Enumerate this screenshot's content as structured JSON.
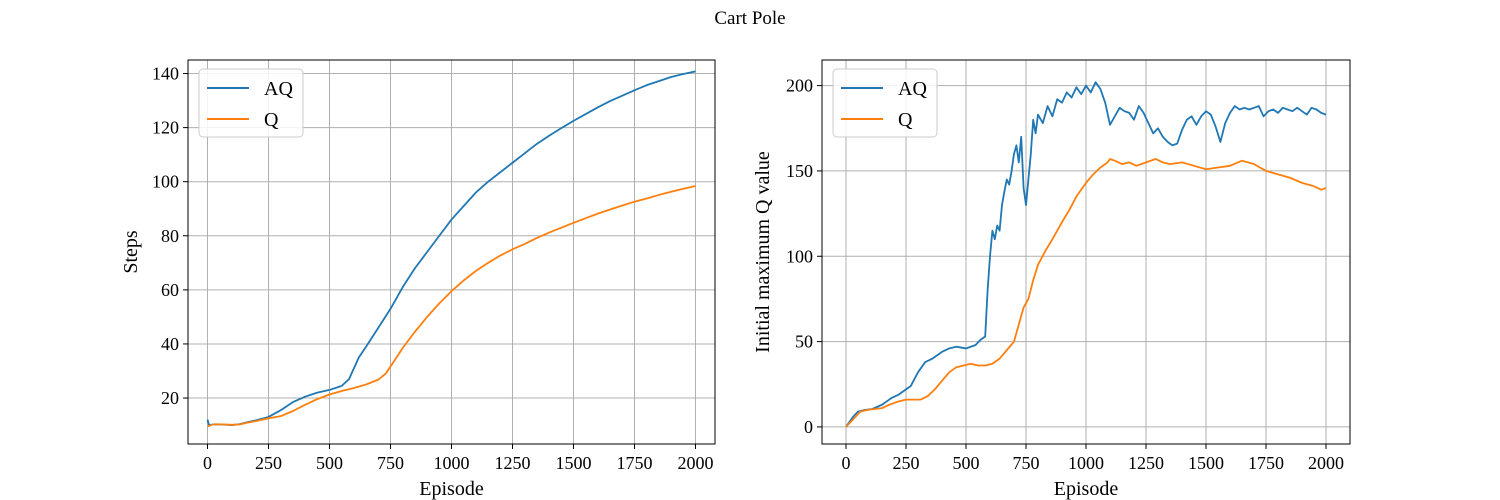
{
  "figure": {
    "title": "Cart Pole"
  },
  "colors": {
    "AQ": "#1f77b4",
    "Q": "#ff7f0e",
    "grid": "#b0b0b0"
  },
  "chart_data": [
    {
      "type": "line",
      "xlabel": "Episode",
      "ylabel": "Steps",
      "xlim": [
        -80,
        2080
      ],
      "ylim": [
        3,
        145
      ],
      "xticks": [
        0,
        250,
        500,
        750,
        1000,
        1250,
        1500,
        1750,
        2000
      ],
      "yticks": [
        20,
        40,
        60,
        80,
        100,
        120,
        140
      ],
      "grid": true,
      "legend": "top-left",
      "series": [
        {
          "name": "AQ",
          "color": "#1f77b4",
          "x": [
            0,
            3,
            6,
            30,
            60,
            100,
            130,
            160,
            200,
            250,
            300,
            350,
            400,
            450,
            500,
            550,
            580,
            620,
            650,
            700,
            750,
            800,
            850,
            900,
            950,
            1000,
            1050,
            1100,
            1150,
            1200,
            1250,
            1300,
            1350,
            1400,
            1450,
            1500,
            1550,
            1600,
            1650,
            1700,
            1750,
            1800,
            1850,
            1900,
            1950,
            2000
          ],
          "y": [
            12,
            11,
            10,
            10.3,
            10.2,
            10,
            10.3,
            11,
            11.8,
            13,
            15.5,
            18.5,
            20.5,
            22,
            23,
            24.5,
            27,
            35,
            39,
            46,
            53,
            61,
            68,
            74,
            80,
            86,
            91,
            96,
            100,
            103.5,
            107,
            110.5,
            114,
            117,
            119.8,
            122.5,
            125,
            127.5,
            129.8,
            131.8,
            133.8,
            135.7,
            137.2,
            138.7,
            139.8,
            140.8
          ]
        },
        {
          "name": "Q",
          "color": "#ff7f0e",
          "x": [
            0,
            20,
            50,
            100,
            130,
            160,
            200,
            250,
            300,
            350,
            400,
            450,
            500,
            550,
            600,
            650,
            700,
            730,
            760,
            800,
            850,
            900,
            950,
            1000,
            1050,
            1100,
            1150,
            1200,
            1250,
            1300,
            1350,
            1400,
            1450,
            1500,
            1550,
            1600,
            1650,
            1700,
            1750,
            1800,
            1850,
            1900,
            1950,
            2000
          ],
          "y": [
            9.5,
            10.2,
            10.3,
            10.1,
            10.2,
            10.8,
            11.5,
            12.5,
            13.3,
            15.2,
            17.5,
            19.6,
            21.3,
            22.6,
            23.7,
            25,
            26.8,
            29,
            33,
            38.5,
            44.5,
            50,
            55,
            59.5,
            63.5,
            67,
            70,
            72.7,
            75,
            77,
            79.2,
            81.2,
            83,
            84.8,
            86.5,
            88.2,
            89.7,
            91.2,
            92.6,
            93.8,
            95.1,
            96.3,
            97.4,
            98.4
          ]
        }
      ]
    },
    {
      "type": "line",
      "xlabel": "Episode",
      "ylabel": "Initial maximum Q value",
      "xlim": [
        -100,
        2100
      ],
      "ylim": [
        -10,
        215
      ],
      "xticks": [
        0,
        250,
        500,
        750,
        1000,
        1250,
        1500,
        1750,
        2000
      ],
      "yticks": [
        0,
        50,
        100,
        150,
        200
      ],
      "grid": true,
      "legend": "top-left",
      "series": [
        {
          "name": "AQ",
          "color": "#1f77b4",
          "x": [
            0,
            15,
            30,
            50,
            80,
            110,
            150,
            190,
            220,
            250,
            270,
            300,
            330,
            360,
            400,
            430,
            460,
            480,
            500,
            520,
            540,
            560,
            580,
            590,
            600,
            610,
            620,
            630,
            640,
            650,
            660,
            670,
            680,
            690,
            700,
            710,
            720,
            730,
            740,
            750,
            760,
            770,
            780,
            790,
            800,
            820,
            840,
            860,
            880,
            900,
            920,
            940,
            960,
            980,
            1000,
            1020,
            1040,
            1060,
            1080,
            1100,
            1120,
            1140,
            1160,
            1180,
            1200,
            1220,
            1240,
            1260,
            1280,
            1300,
            1320,
            1340,
            1360,
            1380,
            1400,
            1420,
            1440,
            1460,
            1480,
            1500,
            1520,
            1540,
            1560,
            1580,
            1600,
            1620,
            1640,
            1660,
            1680,
            1700,
            1720,
            1740,
            1760,
            1780,
            1800,
            1820,
            1840,
            1860,
            1880,
            1900,
            1920,
            1940,
            1960,
            1980,
            2000
          ],
          "y": [
            0,
            3,
            6,
            9,
            10,
            10.5,
            13,
            17,
            19,
            22,
            24,
            32,
            38,
            40,
            44,
            46,
            47,
            46.5,
            46,
            47,
            48,
            51,
            53,
            80,
            100,
            115,
            110,
            118,
            115,
            130,
            138,
            145,
            142,
            150,
            160,
            165,
            155,
            170,
            140,
            130,
            145,
            160,
            180,
            172,
            183,
            178,
            188,
            182,
            192,
            190,
            196,
            193,
            199,
            195,
            200,
            196,
            202,
            198,
            190,
            177,
            182,
            187,
            185,
            184,
            180,
            188,
            184,
            178,
            172,
            175,
            170,
            167,
            165,
            166,
            174,
            180,
            182,
            177,
            182,
            185,
            183,
            176,
            167,
            178,
            184,
            188,
            186,
            187,
            186,
            187,
            188,
            182,
            185,
            186,
            184,
            187,
            186,
            185,
            187,
            185,
            183,
            187,
            186,
            184,
            183
          ]
        },
        {
          "name": "Q",
          "color": "#ff7f0e",
          "x": [
            0,
            20,
            40,
            60,
            90,
            120,
            150,
            180,
            220,
            250,
            280,
            310,
            340,
            370,
            400,
            430,
            460,
            490,
            520,
            550,
            580,
            610,
            640,
            670,
            700,
            720,
            740,
            760,
            780,
            800,
            830,
            860,
            900,
            930,
            960,
            1000,
            1030,
            1060,
            1090,
            1100,
            1120,
            1150,
            1180,
            1210,
            1250,
            1290,
            1320,
            1350,
            1400,
            1450,
            1500,
            1550,
            1600,
            1650,
            1700,
            1750,
            1800,
            1850,
            1900,
            1950,
            1980,
            2000
          ],
          "y": [
            0,
            3,
            6,
            9,
            10,
            10.5,
            11,
            13,
            15,
            16,
            16,
            16,
            18,
            22,
            27,
            32,
            35,
            36,
            37,
            36,
            36,
            37,
            40,
            45,
            50,
            60,
            70,
            75,
            86,
            95,
            103,
            110,
            120,
            127,
            135,
            143,
            148,
            152,
            155,
            157,
            156,
            154,
            155,
            153,
            155,
            157,
            155,
            154,
            155,
            153,
            151,
            152,
            153,
            156,
            154,
            150,
            148,
            146,
            143,
            141,
            139,
            140
          ]
        }
      ]
    }
  ]
}
